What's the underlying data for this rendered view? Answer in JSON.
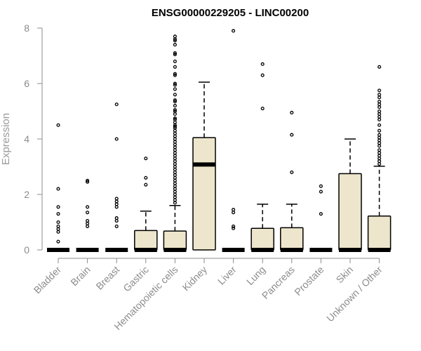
{
  "chart_data": {
    "type": "box",
    "title": "ENSG00000229205 - LINC00200",
    "xlabel": "",
    "ylabel": "Expression",
    "ylim": [
      0,
      8
    ],
    "yticks": [
      0,
      2,
      4,
      6,
      8
    ],
    "grid": false,
    "colors": {
      "box_fill": "#ede6cc",
      "stroke": "#000000",
      "axis": "#8c8c8c"
    },
    "categories": [
      "Bladder",
      "Brain",
      "Breast",
      "Gastric",
      "Hematopoietic cells",
      "Kidney",
      "Liver",
      "Lung",
      "Pancreas",
      "Prostate",
      "Skin",
      "Unknown / Other"
    ],
    "boxes": [
      {
        "category": "Bladder",
        "q1": 0,
        "median": 0,
        "q3": 0,
        "whisker_low": 0,
        "whisker_high": 0,
        "outliers": [
          4.5,
          2.2,
          1.55,
          1.3,
          1.0,
          0.85,
          0.75,
          0.65,
          0.3
        ]
      },
      {
        "category": "Brain",
        "q1": 0,
        "median": 0,
        "q3": 0,
        "whisker_low": 0,
        "whisker_high": 0,
        "outliers": [
          2.5,
          2.45,
          1.55,
          1.35,
          1.05,
          0.95,
          0.85
        ]
      },
      {
        "category": "Breast",
        "q1": 0,
        "median": 0,
        "q3": 0,
        "whisker_low": 0,
        "whisker_high": 0,
        "outliers": [
          5.25,
          4.0,
          1.85,
          1.75,
          1.65,
          1.55,
          1.15,
          1.05,
          0.85
        ]
      },
      {
        "category": "Gastric",
        "q1": 0,
        "median": 0,
        "q3": 0.7,
        "whisker_low": 0,
        "whisker_high": 1.4,
        "outliers": [
          3.3,
          2.6,
          2.35
        ]
      },
      {
        "category": "Hematopoietic cells",
        "q1": 0,
        "median": 0,
        "q3": 0.68,
        "whisker_low": 0,
        "whisker_high": 1.6,
        "outliers": [
          7.7,
          7.6,
          7.55,
          7.4,
          7.1,
          7.05,
          6.8,
          6.6,
          6.35,
          6.3,
          6.0,
          5.95,
          5.8,
          5.6,
          5.4,
          5.35,
          5.2,
          5.05,
          5.0,
          4.9,
          4.75,
          4.7,
          4.6,
          4.5,
          4.45,
          4.4,
          4.3,
          4.2,
          4.1,
          4.0,
          3.9,
          3.8,
          3.7,
          3.6,
          3.5,
          3.4,
          3.3,
          3.2,
          3.1,
          3.0,
          2.9,
          2.8,
          2.7,
          2.6,
          2.5,
          2.4,
          2.3,
          2.2,
          2.1,
          2.0,
          1.9,
          1.8,
          1.7
        ]
      },
      {
        "category": "Kidney",
        "q1": 0,
        "median": 3.08,
        "q3": 4.05,
        "whisker_low": 0,
        "whisker_high": 6.05,
        "outliers": []
      },
      {
        "category": "Liver",
        "q1": 0,
        "median": 0,
        "q3": 0,
        "whisker_low": 0,
        "whisker_high": 0,
        "outliers": [
          7.9,
          1.45,
          1.35,
          0.85,
          0.78
        ]
      },
      {
        "category": "Lung",
        "q1": 0,
        "median": 0,
        "q3": 0.78,
        "whisker_low": 0,
        "whisker_high": 1.65,
        "outliers": [
          6.7,
          6.3,
          5.1
        ]
      },
      {
        "category": "Pancreas",
        "q1": 0,
        "median": 0,
        "q3": 0.8,
        "whisker_low": 0,
        "whisker_high": 1.65,
        "outliers": [
          4.95,
          4.15,
          2.8
        ]
      },
      {
        "category": "Prostate",
        "q1": 0,
        "median": 0,
        "q3": 0,
        "whisker_low": 0,
        "whisker_high": 0,
        "outliers": [
          2.3,
          2.1,
          1.3
        ]
      },
      {
        "category": "Skin",
        "q1": 0,
        "median": 0,
        "q3": 2.75,
        "whisker_low": 0,
        "whisker_high": 4.0,
        "outliers": []
      },
      {
        "category": "Unknown / Other",
        "q1": 0,
        "median": 0,
        "q3": 1.22,
        "whisker_low": 0,
        "whisker_high": 3.02,
        "outliers": [
          6.6,
          5.75,
          5.6,
          5.5,
          5.35,
          5.25,
          5.15,
          5.0,
          4.9,
          4.8,
          4.7,
          4.5,
          4.3,
          4.15,
          4.05,
          3.95,
          3.85,
          3.75,
          3.6,
          3.5,
          3.4,
          3.3,
          3.2,
          3.1
        ]
      }
    ]
  }
}
